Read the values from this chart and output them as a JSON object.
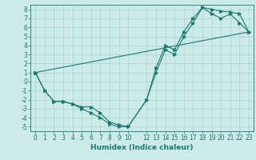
{
  "xlabel": "Humidex (Indice chaleur)",
  "bg_color": "#cceae8",
  "grid_color": "#aad4d0",
  "line_color": "#1a7a6e",
  "xlim": [
    -0.5,
    23.5
  ],
  "ylim": [
    -5.5,
    8.5
  ],
  "xticks": [
    0,
    1,
    2,
    3,
    4,
    5,
    6,
    7,
    8,
    9,
    10,
    12,
    13,
    14,
    15,
    16,
    17,
    18,
    19,
    20,
    21,
    22,
    23
  ],
  "yticks": [
    -5,
    -4,
    -3,
    -2,
    -1,
    0,
    1,
    2,
    3,
    4,
    5,
    6,
    7,
    8
  ],
  "series1_x": [
    0,
    1,
    2,
    3,
    4,
    5,
    6,
    7,
    8,
    9,
    10,
    12,
    13,
    14,
    15,
    16,
    17,
    18,
    19,
    20,
    21,
    22,
    23
  ],
  "series1_y": [
    1,
    -1,
    -2.2,
    -2.2,
    -2.5,
    -3.0,
    -3.5,
    -4.0,
    -4.7,
    -5.0,
    -5.0,
    -2.0,
    1.0,
    3.5,
    3.0,
    5.0,
    6.5,
    8.2,
    7.5,
    7.0,
    7.5,
    6.5,
    5.5
  ],
  "series2_x": [
    0,
    1,
    2,
    3,
    4,
    5,
    6,
    7,
    8,
    9,
    10,
    12,
    13,
    14,
    15,
    16,
    17,
    18,
    19,
    20,
    21,
    22,
    23
  ],
  "series2_y": [
    1,
    -1,
    -2.2,
    -2.2,
    -2.5,
    -2.8,
    -2.8,
    -3.5,
    -4.5,
    -4.8,
    -5.0,
    -2.0,
    1.5,
    4.0,
    3.5,
    5.5,
    7.0,
    8.2,
    8.0,
    7.8,
    7.7,
    7.5,
    5.5
  ],
  "series3_x": [
    0,
    23
  ],
  "series3_y": [
    1,
    5.5
  ],
  "tick_fontsize": 5.5,
  "xlabel_fontsize": 6.5
}
